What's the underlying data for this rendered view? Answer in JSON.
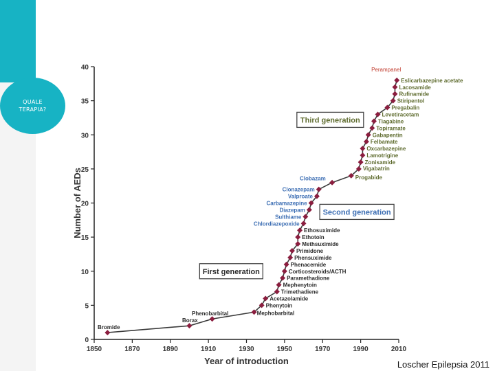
{
  "sidebar": {
    "label": "QUALE TERAPIA?"
  },
  "citation": "Loscher Epilepsia 2011",
  "chart_data": {
    "type": "line",
    "title": "",
    "xlabel": "Year of introduction",
    "ylabel": "Number of AEDs",
    "xlim": [
      1850,
      2010
    ],
    "ylim": [
      0,
      40
    ],
    "xticks": [
      1850,
      1870,
      1890,
      1910,
      1930,
      1950,
      1970,
      1990,
      2010
    ],
    "yticks": [
      0,
      5,
      10,
      15,
      20,
      25,
      30,
      35,
      40
    ],
    "colors": {
      "line": "#3a3a3a",
      "marker": "#8b1e3f",
      "label_dark": "#2a2a2a",
      "label_blue": "#3b6db3",
      "label_olive": "#5e6b2e"
    },
    "points": [
      {
        "x": 1857,
        "y": 1,
        "label": "Bromide",
        "color": "dark"
      },
      {
        "x": 1900,
        "y": 2,
        "label": "Borax",
        "color": "dark"
      },
      {
        "x": 1912,
        "y": 3,
        "label": "Phenobarbital",
        "color": "dark"
      },
      {
        "x": 1934,
        "y": 4,
        "label": "Mephobarbital",
        "color": "dark"
      },
      {
        "x": 1938,
        "y": 5,
        "label": "Phenytoin",
        "color": "dark"
      },
      {
        "x": 1940,
        "y": 6,
        "label": "Acetazolamide",
        "color": "dark"
      },
      {
        "x": 1946,
        "y": 7,
        "label": "Trimethadiene",
        "color": "dark"
      },
      {
        "x": 1947,
        "y": 8,
        "label": "Mephenytoin",
        "color": "dark"
      },
      {
        "x": 1949,
        "y": 9,
        "label": "Paramethadione",
        "color": "dark"
      },
      {
        "x": 1950,
        "y": 10,
        "label": "Corticosteroids/ACTH",
        "color": "dark"
      },
      {
        "x": 1951,
        "y": 11,
        "label": "Phenacemide",
        "color": "dark"
      },
      {
        "x": 1953,
        "y": 12,
        "label": "Phensuximide",
        "color": "dark"
      },
      {
        "x": 1954,
        "y": 13,
        "label": "Primidone",
        "color": "dark"
      },
      {
        "x": 1957,
        "y": 14,
        "label": "Methsuximide",
        "color": "dark"
      },
      {
        "x": 1957,
        "y": 15,
        "label": "Ethotoin",
        "color": "dark"
      },
      {
        "x": 1958,
        "y": 16,
        "label": "Ethosuximide",
        "color": "dark"
      },
      {
        "x": 1960,
        "y": 17,
        "label": "Chlordiazepoxide",
        "color": "blue"
      },
      {
        "x": 1961,
        "y": 18,
        "label": "Sulthiame",
        "color": "blue"
      },
      {
        "x": 1963,
        "y": 19,
        "label": "Diazepam",
        "color": "blue"
      },
      {
        "x": 1964,
        "y": 20,
        "label": "Carbamazepine",
        "color": "blue"
      },
      {
        "x": 1967,
        "y": 21,
        "label": "Valproate",
        "color": "blue"
      },
      {
        "x": 1968,
        "y": 22,
        "label": "Clonazepam",
        "color": "blue"
      },
      {
        "x": 1975,
        "y": 23,
        "label": "Clobazam",
        "color": "blue"
      },
      {
        "x": 1985,
        "y": 24,
        "label": "Progabide",
        "color": "olive"
      },
      {
        "x": 1989,
        "y": 25,
        "label": "Vigabatrin",
        "color": "olive"
      },
      {
        "x": 1990,
        "y": 26,
        "label": "Zonisamide",
        "color": "olive"
      },
      {
        "x": 1991,
        "y": 27,
        "label": "Lamotrigine",
        "color": "olive"
      },
      {
        "x": 1991,
        "y": 28,
        "label": "Oxcarbazepine",
        "color": "olive"
      },
      {
        "x": 1993,
        "y": 29,
        "label": "Felbamate",
        "color": "olive"
      },
      {
        "x": 1994,
        "y": 30,
        "label": "Gabapentin",
        "color": "olive"
      },
      {
        "x": 1996,
        "y": 31,
        "label": "Topiramate",
        "color": "olive"
      },
      {
        "x": 1997,
        "y": 32,
        "label": "Tiagabine",
        "color": "olive"
      },
      {
        "x": 1999,
        "y": 33,
        "label": "Levetiracetam",
        "color": "olive"
      },
      {
        "x": 2004,
        "y": 34,
        "label": "Pregabalin",
        "color": "olive"
      },
      {
        "x": 2007,
        "y": 35,
        "label": "Stiripentol",
        "color": "olive"
      },
      {
        "x": 2008,
        "y": 36,
        "label": "Rufinamide",
        "color": "olive"
      },
      {
        "x": 2008,
        "y": 37,
        "label": "Lacosamide",
        "color": "olive"
      },
      {
        "x": 2009,
        "y": 38,
        "label": "Eslicarbazepine acetate",
        "color": "olive"
      }
    ],
    "annotations": [
      {
        "text": "Perampanel",
        "x": 2009,
        "y": 39.6
      }
    ],
    "generations": [
      {
        "label": "First generation",
        "x": 1922,
        "y": 10
      },
      {
        "label": "Second generation",
        "x": 1988,
        "y": 18.7
      },
      {
        "label": "Third generation",
        "x": 1974,
        "y": 32.2
      }
    ]
  }
}
